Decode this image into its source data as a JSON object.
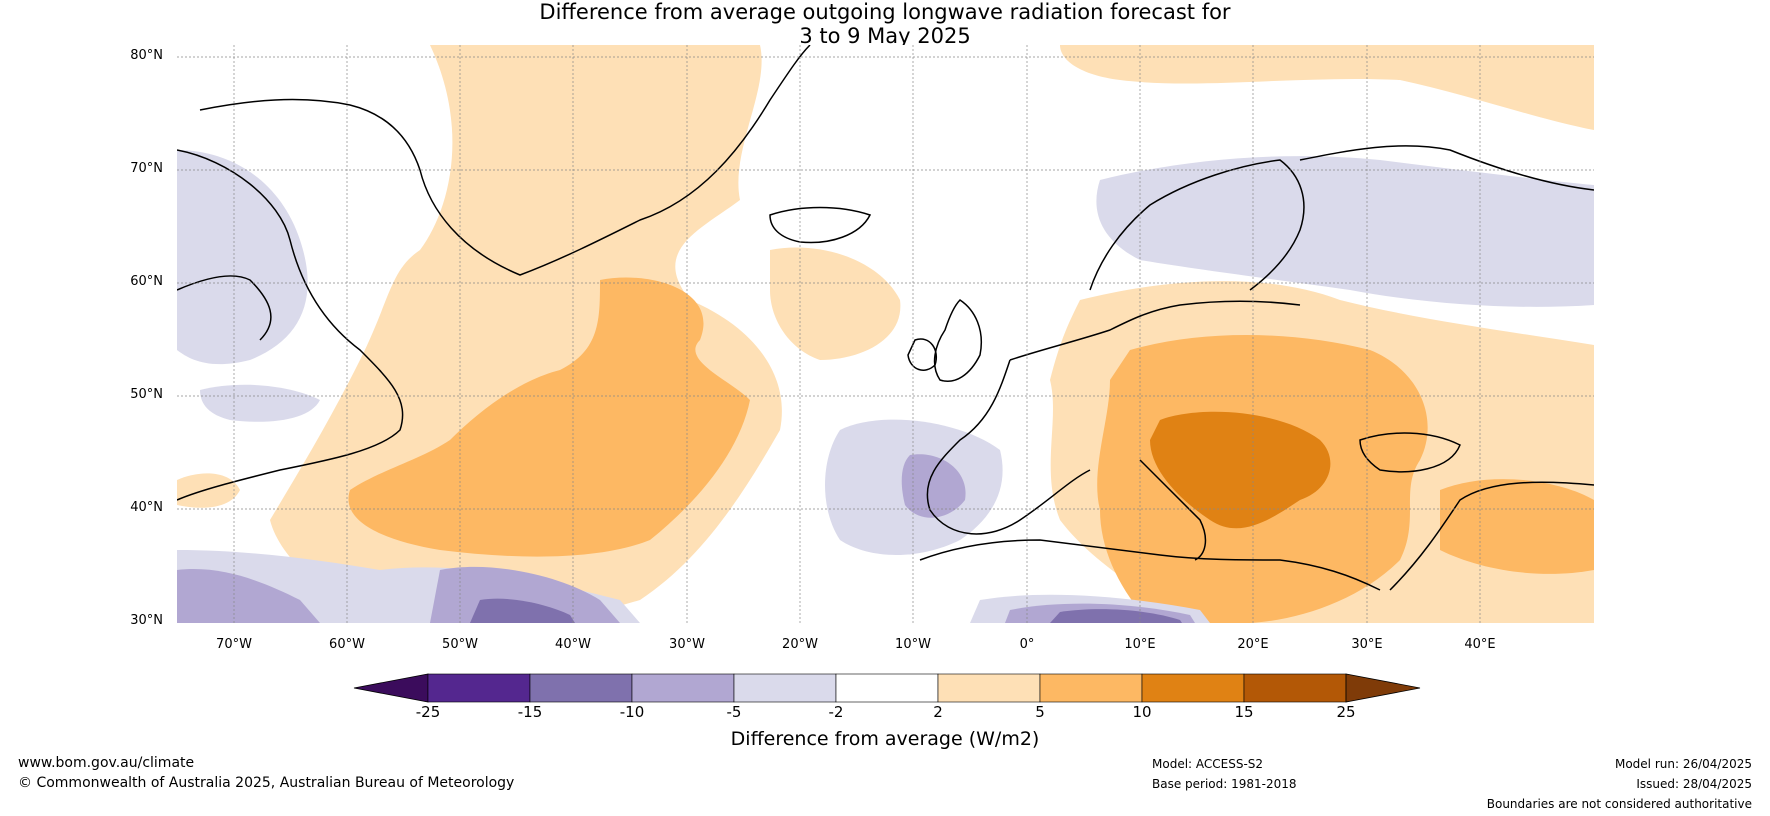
{
  "title": {
    "line1": "Difference from average outgoing longwave radiation forecast for",
    "line2": "3 to 9 May 2025"
  },
  "latitude_labels": [
    "80°N",
    "70°N",
    "60°N",
    "50°N",
    "40°N",
    "30°N"
  ],
  "longitude_labels": [
    "70°W",
    "60°W",
    "50°W",
    "40°W",
    "30°W",
    "20°W",
    "10°W",
    "0°",
    "10°E",
    "20°E",
    "30°E",
    "40°E"
  ],
  "colorbar": {
    "ticks": [
      "-25",
      "-15",
      "-10",
      "-5",
      "-2",
      "2",
      "5",
      "10",
      "15",
      "25"
    ],
    "label": "Difference from average (W/m2)",
    "colors": [
      "#3b0c5c",
      "#54278f",
      "#7f71ad",
      "#b1a7d2",
      "#dadaeb",
      "#ffffff",
      "#fee0b6",
      "#fdb863",
      "#e08214",
      "#b35806",
      "#7f3b08"
    ]
  },
  "footer": {
    "website": "www.bom.gov.au/climate",
    "copyright": "© Commonwealth of Australia 2025, Australian Bureau of Meteorology",
    "model": "Model: ACCESS-S2",
    "base_period": "Base period: 1981-2018",
    "model_run": "Model run: 26/04/2025",
    "issued": "Issued: 28/04/2025",
    "disclaimer": "Boundaries are not considered authoritative"
  }
}
